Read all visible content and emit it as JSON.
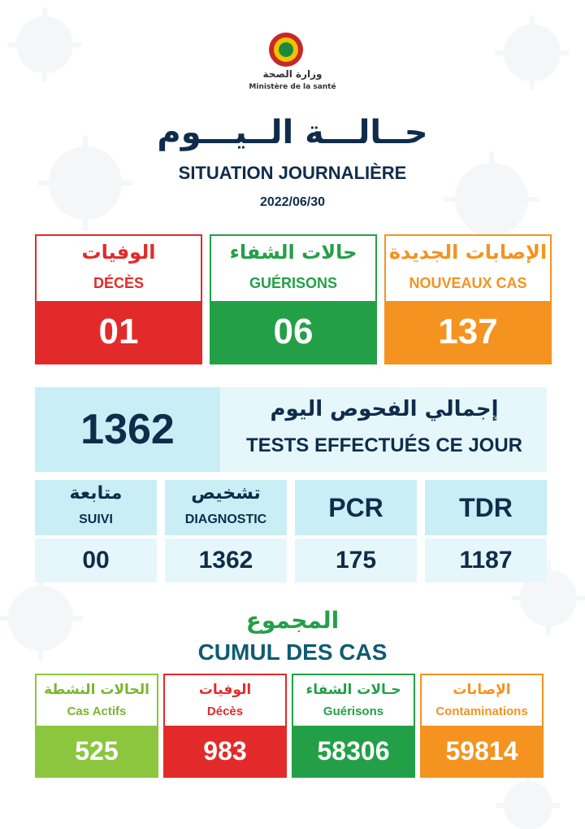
{
  "header": {
    "ministry_ar": "وزارة الصحة",
    "ministry_fr": "Ministère de la santé",
    "title_ar": "حــالـــة الــيـــوم",
    "title_fr": "SITUATION JOURNALIÈRE",
    "date": "2022/06/30"
  },
  "daily": {
    "deces": {
      "label_ar": "الوفيات",
      "label_fr": "DÉCÈS",
      "value": "01",
      "color": "#e32a2a"
    },
    "guerisons": {
      "label_ar": "حالات الشفاء",
      "label_fr": "GUÉRISONS",
      "value": "06",
      "color": "#23a047"
    },
    "nouveaux": {
      "label_ar": "الإصابات الجديدة",
      "label_fr": "NOUVEAUX CAS",
      "value": "137",
      "color": "#f4931f"
    }
  },
  "tests": {
    "total": "1362",
    "label_ar": "إجمالي الفحوص اليوم",
    "label_fr": "TESTS EFFECTUÉS CE JOUR",
    "suivi": {
      "label_ar": "متابعة",
      "label_fr": "SUIVI",
      "value": "00"
    },
    "diagnostic": {
      "label_ar": "تشخيص",
      "label_fr": "DIAGNOSTIC",
      "value": "1362"
    },
    "pcr": {
      "label": "PCR",
      "value": "175"
    },
    "tdr": {
      "label": "TDR",
      "value": "1187"
    }
  },
  "cumul": {
    "title_ar": "المجموع",
    "title_fr": "CUMUL DES CAS",
    "actifs": {
      "label_ar": "الحالات النشطة",
      "label_fr": "Cas Actifs",
      "value": "525",
      "color": "#8cc63f"
    },
    "deces": {
      "label_ar": "الوفيات",
      "label_fr": "Décès",
      "value": "983",
      "color": "#e32a2a"
    },
    "guerisons": {
      "label_ar": "حـالات الشفاء",
      "label_fr": "Guérisons",
      "value": "58306",
      "color": "#23a047"
    },
    "contaminations": {
      "label_ar": "الإصابات",
      "label_fr": "Contaminations",
      "value": "59814",
      "color": "#f4931f"
    }
  }
}
